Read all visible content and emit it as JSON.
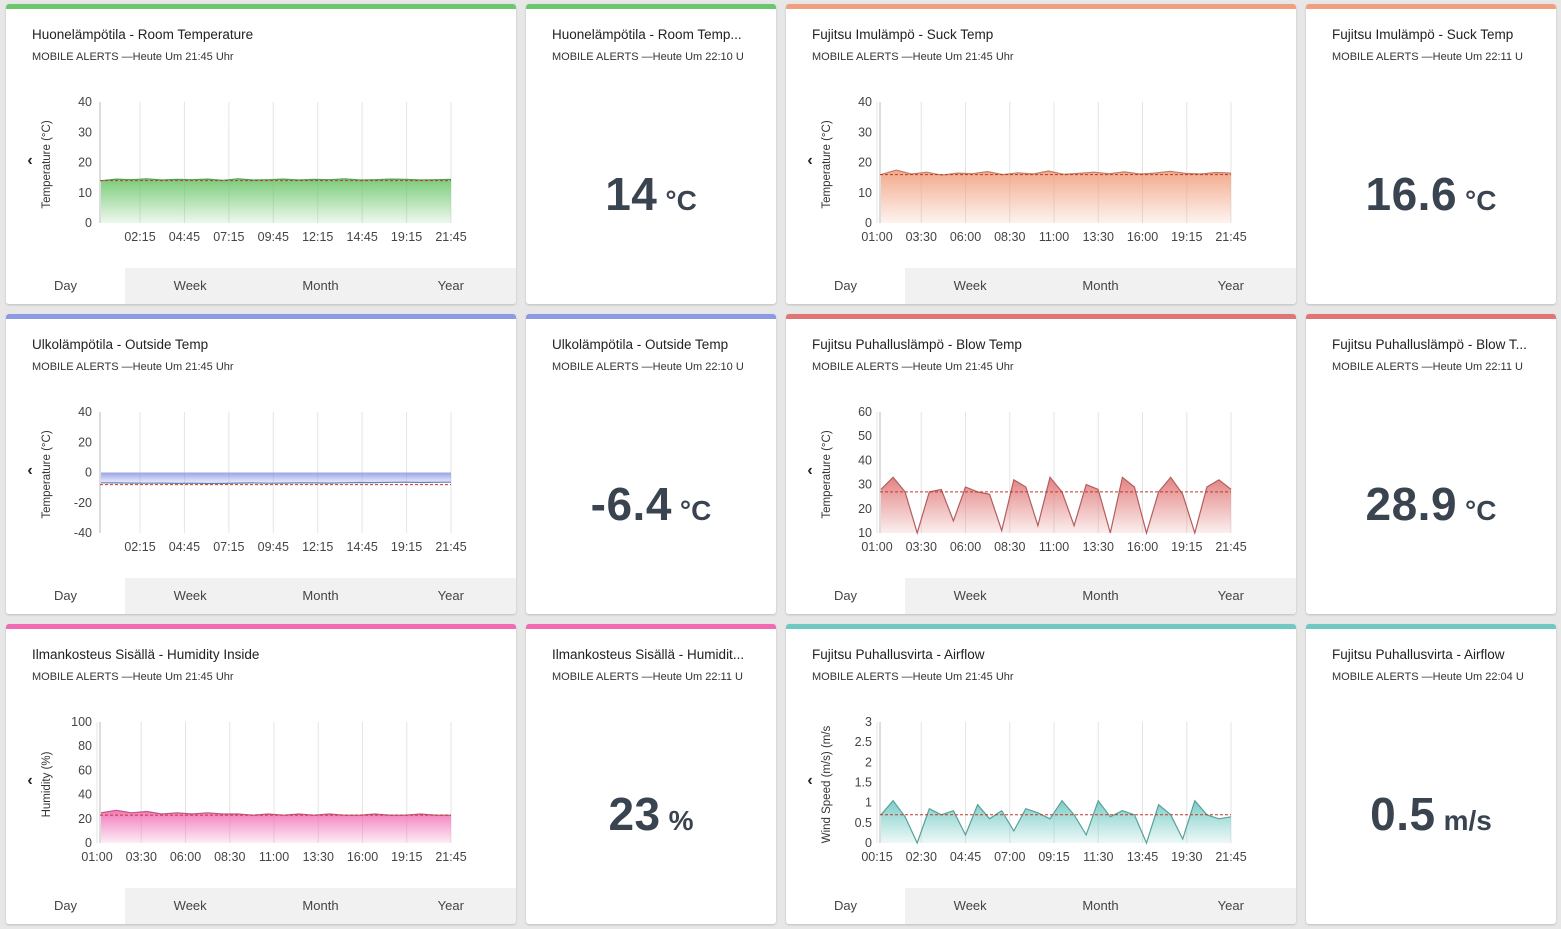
{
  "cards": [
    {
      "title": "Huonelämpötila - Room Temperature",
      "subtitle": "MOBILE ALERTS —Heute Um 21:45 Uhr",
      "color": "#6cc66c",
      "tabs": [
        "Day",
        "Week",
        "Month",
        "Year"
      ],
      "chart_data": {
        "type": "area",
        "ylabel": "Temperature (°C)",
        "yticks": [
          "40",
          "30",
          "20",
          "10",
          "0"
        ],
        "ylim": [
          0,
          40
        ],
        "xticks": [
          "02:15",
          "04:45",
          "07:15",
          "09:45",
          "12:15",
          "14:45",
          "19:15",
          "21:45"
        ],
        "values": [
          14,
          14.5,
          14.3,
          14.6,
          14.2,
          14.4,
          14.3,
          14.5,
          14.1,
          14.6,
          14.2,
          14.3,
          14.5,
          14.2,
          14.4,
          14.3,
          14.6,
          14.2,
          14.3,
          14.5,
          14.4,
          14.2,
          14.3,
          14.4
        ],
        "reference": 14
      }
    },
    {
      "title": "Huonelämpötila - Room Temp...",
      "subtitle": "MOBILE ALERTS —Heute Um 22:10 U",
      "color": "#6cc66c",
      "value": "14",
      "unit": "°C"
    },
    {
      "title": "Fujitsu Imulämpö - Suck Temp",
      "subtitle": "MOBILE ALERTS —Heute Um 21:45 Uhr",
      "color": "#f0a07e",
      "tabs": [
        "Day",
        "Week",
        "Month",
        "Year"
      ],
      "chart_data": {
        "type": "area",
        "ylabel": "Temperature (°C)",
        "yticks": [
          "40",
          "30",
          "20",
          "10",
          "0"
        ],
        "ylim": [
          0,
          40
        ],
        "xticks": [
          "01:00",
          "03:30",
          "06:00",
          "08:30",
          "11:00",
          "13:30",
          "16:00",
          "19:15",
          "21:45"
        ],
        "values": [
          16,
          17.5,
          16.2,
          16.8,
          15.8,
          16.5,
          16.3,
          17,
          16,
          16.6,
          16.2,
          17.2,
          16.1,
          16.4,
          16.8,
          16.3,
          16.9,
          16.2,
          16.5,
          17.1,
          16.4,
          16.2,
          16.7,
          16.5
        ],
        "reference": 16
      }
    },
    {
      "title": "Fujitsu Imulämpö - Suck Temp",
      "subtitle": "MOBILE ALERTS —Heute Um 22:11 U",
      "color": "#f0a07e",
      "value": "16.6",
      "unit": "°C"
    },
    {
      "title": "Ulkolämpötila - Outside Temp",
      "subtitle": "MOBILE ALERTS —Heute Um 21:45 Uhr",
      "color": "#8c9ae3",
      "tabs": [
        "Day",
        "Week",
        "Month",
        "Year"
      ],
      "chart_data": {
        "type": "area",
        "ylabel": "Temperature (°C)",
        "yticks": [
          "40",
          "20",
          "0",
          "-20",
          "-40"
        ],
        "ylim": [
          -40,
          40
        ],
        "xticks": [
          "02:15",
          "04:45",
          "07:15",
          "09:45",
          "12:15",
          "14:45",
          "19:15",
          "21:45"
        ],
        "values": [
          -6.8,
          -6.9,
          -7,
          -7.1,
          -7,
          -7.2,
          -7.1,
          -7.3,
          -7.2,
          -7,
          -6.9,
          -7.1,
          -7,
          -6.8,
          -6.9,
          -7,
          -6.8,
          -6.6,
          -6.7,
          -6.5,
          -6.4,
          -6.6,
          -6.5,
          -6.4
        ],
        "reference": -8
      }
    },
    {
      "title": "Ulkolämpötila - Outside Temp",
      "subtitle": "MOBILE ALERTS —Heute Um 22:10 U",
      "color": "#8c9ae3",
      "value": "-6.4",
      "unit": "°C"
    },
    {
      "title": "Fujitsu Puhalluslämpö - Blow Temp",
      "subtitle": "MOBILE ALERTS —Heute Um 21:45 Uhr",
      "color": "#e07575",
      "tabs": [
        "Day",
        "Week",
        "Month",
        "Year"
      ],
      "chart_data": {
        "type": "area",
        "ylabel": "Temperature (°C)",
        "yticks": [
          "60",
          "50",
          "40",
          "30",
          "20",
          "10"
        ],
        "ylim": [
          10,
          60
        ],
        "xticks": [
          "01:00",
          "03:30",
          "06:00",
          "08:30",
          "11:00",
          "13:30",
          "16:00",
          "19:15",
          "21:45"
        ],
        "values": [
          28,
          33,
          27,
          10,
          27,
          28,
          15,
          29,
          27,
          26,
          11,
          32,
          29,
          13,
          33,
          27,
          13,
          30,
          28,
          10,
          33,
          29,
          10,
          27,
          33,
          26,
          10,
          29,
          32,
          28
        ],
        "reference": 27
      }
    },
    {
      "title": "Fujitsu Puhalluslämpö - Blow T...",
      "subtitle": "MOBILE ALERTS —Heute Um 22:11 U",
      "color": "#e07575",
      "value": "28.9",
      "unit": "°C"
    },
    {
      "title": "Ilmankosteus Sisällä - Humidity Inside",
      "subtitle": "MOBILE ALERTS —Heute Um 21:45 Uhr",
      "color": "#f06ab4",
      "tabs": [
        "Day",
        "Week",
        "Month",
        "Year"
      ],
      "chart_data": {
        "type": "area",
        "ylabel": "Humidity (%)",
        "yticks": [
          "100",
          "80",
          "60",
          "40",
          "20",
          "0"
        ],
        "ylim": [
          0,
          100
        ],
        "xticks": [
          "01:00",
          "03:30",
          "06:00",
          "08:30",
          "11:00",
          "13:30",
          "16:00",
          "19:15",
          "21:45"
        ],
        "values": [
          25,
          27,
          25,
          26,
          24,
          25,
          24,
          25,
          24,
          24,
          23,
          24,
          23,
          24,
          23,
          24,
          23,
          23,
          24,
          23,
          23,
          24,
          23,
          23
        ],
        "reference": 23
      }
    },
    {
      "title": "Ilmankosteus Sisällä - Humidit...",
      "subtitle": "MOBILE ALERTS —Heute Um 22:11 U",
      "color": "#f06ab4",
      "value": "23",
      "unit": "%"
    },
    {
      "title": "Fujitsu Puhallusvirta - Airflow",
      "subtitle": "MOBILE ALERTS —Heute Um 21:45 Uhr",
      "color": "#6fc8c2",
      "tabs": [
        "Day",
        "Week",
        "Month",
        "Year"
      ],
      "chart_data": {
        "type": "area",
        "ylabel": "Wind Speed (m/s) (m/s",
        "yticks": [
          "3",
          "2.5",
          "2",
          "1.5",
          "1",
          "0.5",
          "0"
        ],
        "ylim": [
          0,
          3
        ],
        "xticks": [
          "00:15",
          "02:30",
          "04:45",
          "07:00",
          "09:15",
          "11:30",
          "13:45",
          "19:30",
          "21:45"
        ],
        "values": [
          0.7,
          1.05,
          0.65,
          0,
          0.85,
          0.7,
          0.8,
          0.2,
          0.95,
          0.6,
          0.8,
          0.3,
          0.85,
          0.75,
          0.6,
          1.05,
          0.7,
          0.2,
          1.05,
          0.65,
          0.8,
          0.7,
          0,
          0.95,
          0.7,
          0.1,
          1.05,
          0.7,
          0.6,
          0.65
        ],
        "reference": 0.7
      }
    },
    {
      "title": "Fujitsu Puhallusvirta - Airflow",
      "subtitle": "MOBILE ALERTS —Heute Um 22:04 U",
      "color": "#6fc8c2",
      "value": "0.5",
      "unit": "m/s"
    }
  ]
}
